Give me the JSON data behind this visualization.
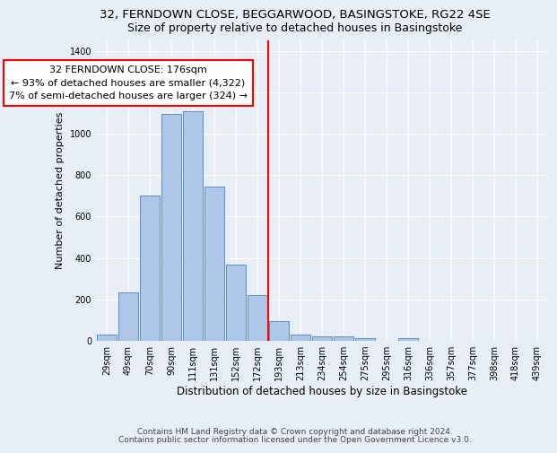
{
  "title1": "32, FERNDOWN CLOSE, BEGGARWOOD, BASINGSTOKE, RG22 4SE",
  "title2": "Size of property relative to detached houses in Basingstoke",
  "xlabel": "Distribution of detached houses by size in Basingstoke",
  "ylabel": "Number of detached properties",
  "categories": [
    "29sqm",
    "49sqm",
    "70sqm",
    "90sqm",
    "111sqm",
    "131sqm",
    "152sqm",
    "172sqm",
    "193sqm",
    "213sqm",
    "234sqm",
    "254sqm",
    "275sqm",
    "295sqm",
    "316sqm",
    "336sqm",
    "357sqm",
    "377sqm",
    "398sqm",
    "418sqm",
    "439sqm"
  ],
  "values": [
    30,
    235,
    700,
    1095,
    1110,
    745,
    370,
    220,
    95,
    30,
    20,
    20,
    15,
    0,
    15,
    0,
    0,
    0,
    0,
    0,
    0
  ],
  "bar_color": "#aec6e8",
  "bar_edge_color": "#5a8fc4",
  "vline_position": 7.5,
  "vline_color": "red",
  "annotation_line1": "32 FERNDOWN CLOSE: 176sqm",
  "annotation_line2": "← 93% of detached houses are smaller (4,322)",
  "annotation_line3": "7% of semi-detached houses are larger (324) →",
  "annotation_box_color": "white",
  "annotation_box_edge_color": "red",
  "ylim": [
    0,
    1450
  ],
  "yticks": [
    0,
    200,
    400,
    600,
    800,
    1000,
    1200,
    1400
  ],
  "bg_color": "#e8eef5",
  "footer1": "Contains HM Land Registry data © Crown copyright and database right 2024.",
  "footer2": "Contains public sector information licensed under the Open Government Licence v3.0.",
  "title1_fontsize": 9.5,
  "title2_fontsize": 9,
  "xlabel_fontsize": 8.5,
  "ylabel_fontsize": 8,
  "tick_fontsize": 7,
  "annotation_fontsize": 8,
  "footer_fontsize": 6.5
}
